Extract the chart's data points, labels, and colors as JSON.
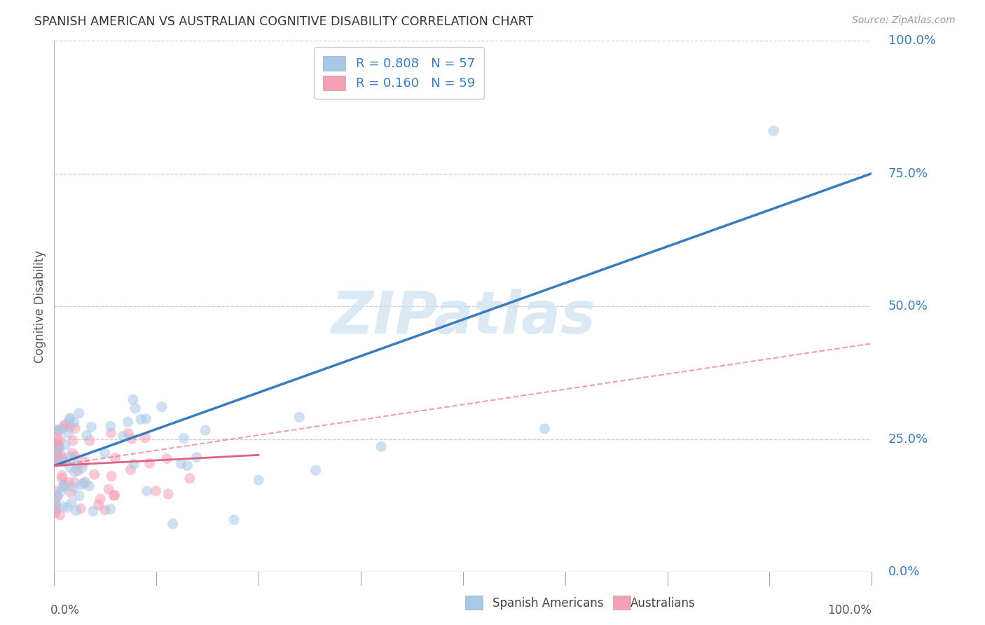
{
  "title": "SPANISH AMERICAN VS AUSTRALIAN COGNITIVE DISABILITY CORRELATION CHART",
  "source": "Source: ZipAtlas.com",
  "ylabel": "Cognitive Disability",
  "ytick_labels": [
    "0.0%",
    "25.0%",
    "50.0%",
    "75.0%",
    "100.0%"
  ],
  "ytick_values": [
    0,
    25,
    50,
    75,
    100
  ],
  "xlim": [
    0,
    100
  ],
  "ylim": [
    0,
    100
  ],
  "legend_r1": "R = 0.808",
  "legend_n1": "N = 57",
  "legend_r2": "R = 0.160",
  "legend_n2": "N = 59",
  "blue_color": "#a8c8e8",
  "pink_color": "#f4a0b5",
  "blue_line_color": "#3a7bbf",
  "pink_line_color": "#e06080",
  "tick_color": "#3a7bbf",
  "watermark_color": "#cce0f0",
  "blue_line_x0": 0,
  "blue_line_y0": 20,
  "blue_line_x1": 100,
  "blue_line_y1": 75,
  "pink_line_x0": 0,
  "pink_line_y0": 20,
  "pink_line_x1": 25,
  "pink_line_y1": 22,
  "pink_dash_x0": 0,
  "pink_dash_y0": 20,
  "pink_dash_x1": 100,
  "pink_dash_y1": 43
}
